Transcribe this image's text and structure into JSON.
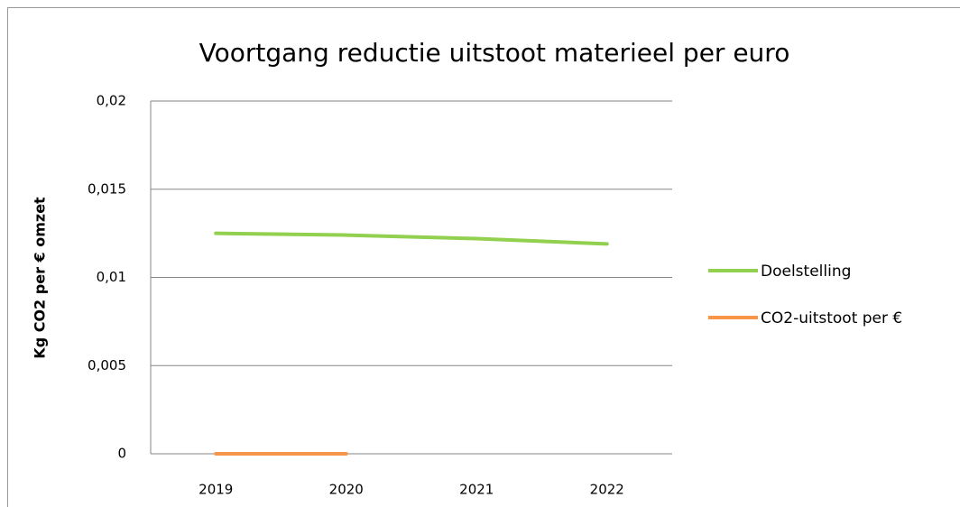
{
  "chart_data": {
    "type": "line",
    "title": "Voortgang reductie uitstoot materieel per euro",
    "y_label": "Kg CO2 per € omzet",
    "categories": [
      "2019",
      "2020",
      "2021",
      "2022"
    ],
    "series": [
      {
        "name": "Doelstelling",
        "color": "#92d050",
        "values": [
          0.0125,
          0.0124,
          0.0122,
          0.0119
        ]
      },
      {
        "name": "CO2-uitstoot per €",
        "color": "#f79646",
        "values": [
          0,
          0,
          null,
          null
        ]
      }
    ],
    "ylim": [
      0,
      0.02
    ],
    "yticks": [
      0,
      {
        "value": 0.005,
        "label": "0,005"
      },
      {
        "value": 0.01,
        "label": "0,01"
      },
      {
        "value": 0.015,
        "label": "0,015"
      },
      {
        "value": 0.02,
        "label": "0,02"
      }
    ],
    "grid": true,
    "legend": "right"
  }
}
